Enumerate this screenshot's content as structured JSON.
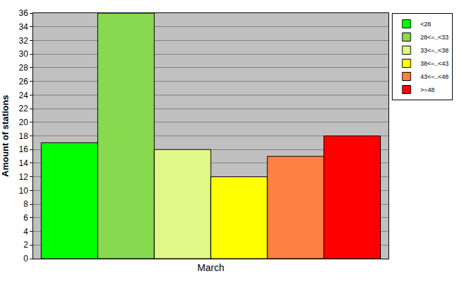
{
  "chart_data": {
    "type": "bar",
    "y_label": "Amount of stations",
    "categories": [
      "March"
    ],
    "series": [
      {
        "name": "<28",
        "color": "#00ff00",
        "values": [
          17
        ]
      },
      {
        "name": "28<=..<33",
        "color": "#88d850",
        "values": [
          36
        ]
      },
      {
        "name": "33<=..<38",
        "color": "#e0f888",
        "values": [
          16
        ]
      },
      {
        "name": "38<=..<43",
        "color": "#ffff00",
        "values": [
          12
        ]
      },
      {
        "name": "43<=..<48",
        "color": "#ff8040",
        "values": [
          15
        ]
      },
      {
        "name": ">=48",
        "color": "#ff0000",
        "values": [
          18
        ]
      }
    ],
    "ylim": [
      0,
      36
    ],
    "yticks": [
      0,
      2,
      4,
      6,
      8,
      10,
      12,
      14,
      16,
      18,
      20,
      22,
      24,
      26,
      28,
      30,
      32,
      34,
      36
    ],
    "grid": true,
    "legend": "top right"
  }
}
